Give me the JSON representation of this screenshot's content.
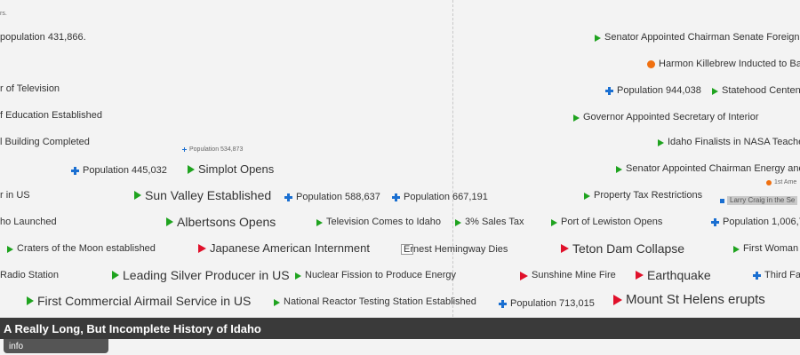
{
  "app": {
    "title": "A Really Long, But Incomplete History of Idaho",
    "info_tab": "info"
  },
  "colors": {
    "political": "#1fa31f",
    "disaster": "#e0102a",
    "population": "#1a6fd1",
    "sports": "#f07010",
    "title_bar": "#3a3a3a"
  },
  "events": [
    {
      "id": "ev0",
      "label": "rs.",
      "icon": "none"
    },
    {
      "id": "ev1",
      "label": "population 431,866.",
      "icon": "none"
    },
    {
      "id": "ev2",
      "label": "r of Television",
      "icon": "none"
    },
    {
      "id": "ev3",
      "label": "f Education Established",
      "icon": "none"
    },
    {
      "id": "ev4",
      "label": "l Building Completed",
      "icon": "none"
    },
    {
      "id": "ev5",
      "label": "Population 534,873",
      "icon": "plus-icon"
    },
    {
      "id": "ev6",
      "label": "Population 445,032",
      "icon": "plus-icon"
    },
    {
      "id": "ev7",
      "label": "Simplot Opens",
      "icon": "green-triangle-icon"
    },
    {
      "id": "ev8",
      "label": "r in US",
      "icon": "none"
    },
    {
      "id": "ev9",
      "label": "Sun Valley Established",
      "icon": "green-triangle-icon"
    },
    {
      "id": "ev10",
      "label": "Population 588,637",
      "icon": "plus-icon"
    },
    {
      "id": "ev11",
      "label": "Population 667,191",
      "icon": "plus-icon"
    },
    {
      "id": "ev12",
      "label": "ho Launched",
      "icon": "none"
    },
    {
      "id": "ev13",
      "label": "Albertsons Opens",
      "icon": "green-triangle-icon"
    },
    {
      "id": "ev14",
      "label": "Television Comes to Idaho",
      "icon": "green-triangle-icon"
    },
    {
      "id": "ev15",
      "label": "3% Sales Tax",
      "icon": "green-triangle-icon"
    },
    {
      "id": "ev16",
      "label": "Craters of the Moon established",
      "icon": "green-triangle-icon"
    },
    {
      "id": "ev17",
      "label": "Japanese American Internment",
      "icon": "red-triangle-icon"
    },
    {
      "id": "ev18",
      "label": "Ernest Hemingway Dies",
      "icon": "image-icon"
    },
    {
      "id": "ev19",
      "label": "Radio Station",
      "icon": "none"
    },
    {
      "id": "ev20",
      "label": "Leading Silver Producer in US",
      "icon": "green-triangle-icon"
    },
    {
      "id": "ev21",
      "label": "Nuclear Fission to Produce Energy",
      "icon": "green-triangle-icon"
    },
    {
      "id": "ev22",
      "label": "First Commercial Airmail Service in US",
      "icon": "green-triangle-icon"
    },
    {
      "id": "ev23",
      "label": "National Reactor Testing Station Established",
      "icon": "green-triangle-icon"
    },
    {
      "id": "ev24",
      "label": "Population 713,015",
      "icon": "plus-icon"
    },
    {
      "id": "ev25",
      "label": "Senator Appointed Chairman Senate Foreign Re",
      "icon": "green-triangle-icon"
    },
    {
      "id": "ev26",
      "label": "Harmon Killebrew Inducted to Bas",
      "icon": "orange-dot-icon"
    },
    {
      "id": "ev27",
      "label": "Population 944,038",
      "icon": "plus-icon"
    },
    {
      "id": "ev28",
      "label": "Statehood Centen",
      "icon": "green-triangle-icon"
    },
    {
      "id": "ev29",
      "label": "Governor Appointed Secretary of Interior",
      "icon": "green-triangle-icon"
    },
    {
      "id": "ev30",
      "label": "Idaho Finalists in NASA Teache",
      "icon": "green-triangle-icon"
    },
    {
      "id": "ev31",
      "label": "Senator Appointed Chairman Energy and",
      "icon": "green-triangle-icon"
    },
    {
      "id": "ev32",
      "label": "1st Ame",
      "icon": "orange-dot-icon"
    },
    {
      "id": "ev33",
      "label": "Property Tax Restrictions",
      "icon": "green-triangle-icon"
    },
    {
      "id": "ev34",
      "label": "Larry Craig in the Se",
      "icon": "blue-square-icon"
    },
    {
      "id": "ev35",
      "label": "Port of Lewiston Opens",
      "icon": "green-triangle-icon"
    },
    {
      "id": "ev36",
      "label": "Population 1,006,7",
      "icon": "plus-icon"
    },
    {
      "id": "ev37",
      "label": "Teton Dam Collapse",
      "icon": "red-triangle-icon"
    },
    {
      "id": "ev38",
      "label": "First Woman",
      "icon": "green-triangle-icon"
    },
    {
      "id": "ev39",
      "label": "Sunshine Mine Fire",
      "icon": "red-triangle-icon"
    },
    {
      "id": "ev40",
      "label": "Earthquake",
      "icon": "red-triangle-icon"
    },
    {
      "id": "ev41",
      "label": "Third Fa",
      "icon": "plus-icon"
    },
    {
      "id": "ev42",
      "label": "Mount St Helens erupts",
      "icon": "red-triangle-icon"
    }
  ]
}
